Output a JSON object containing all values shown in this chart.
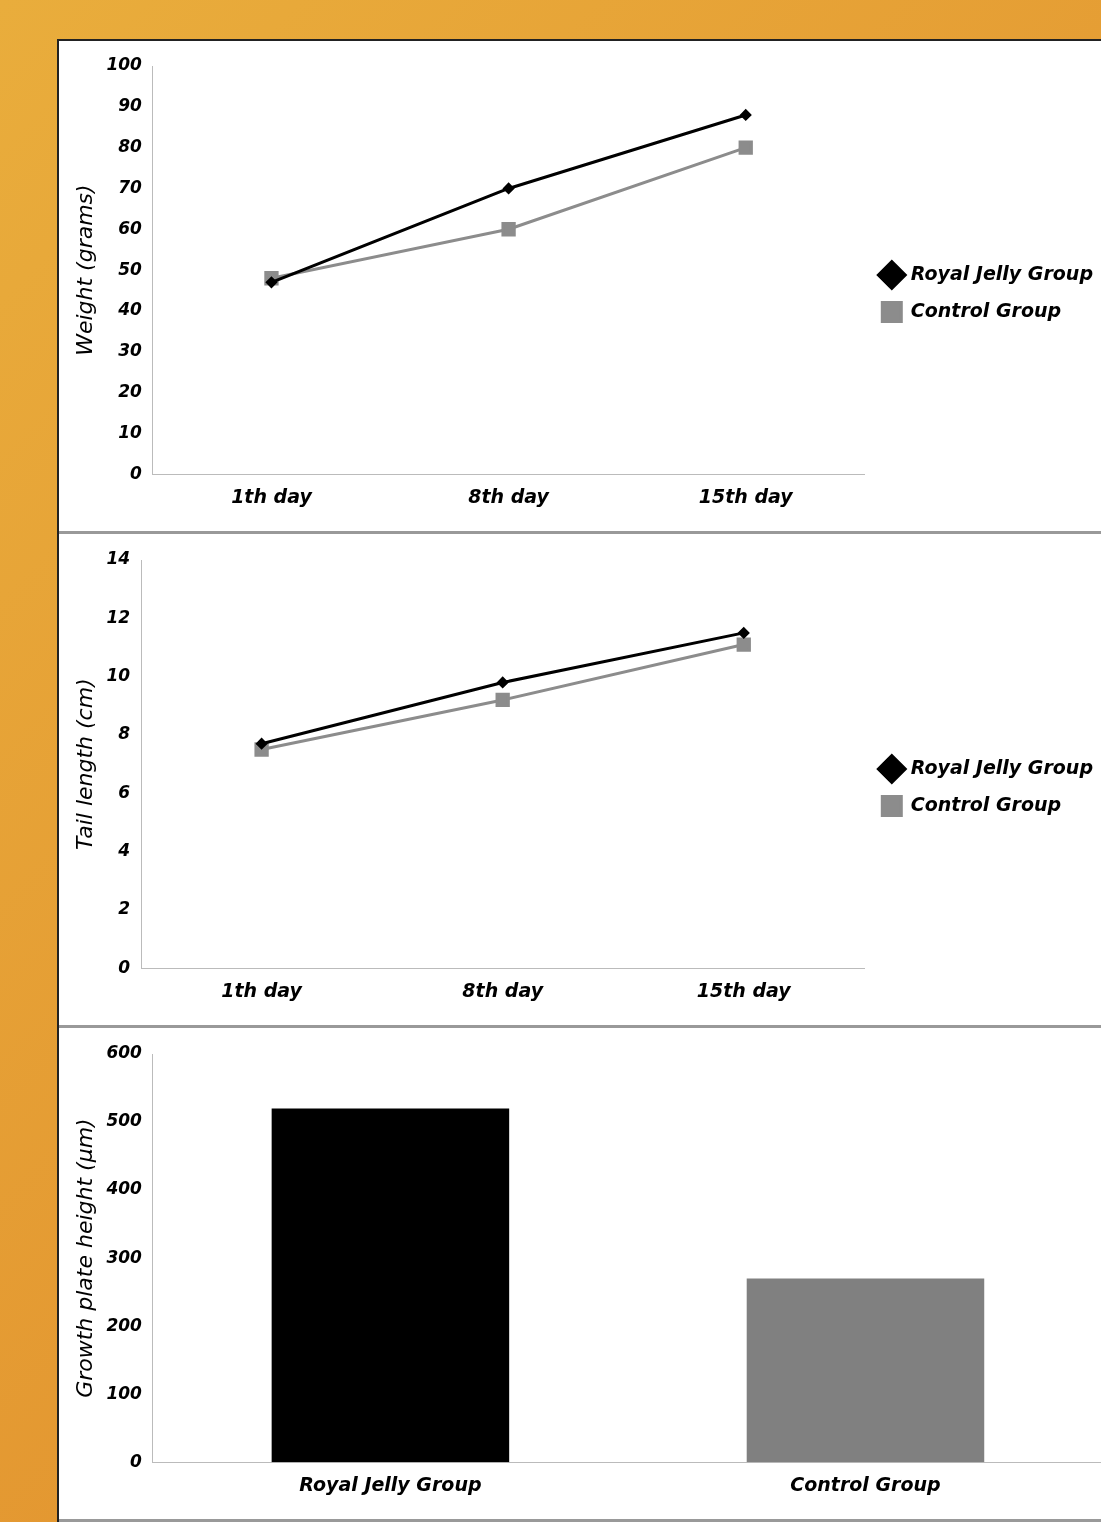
{
  "chart_data": [
    {
      "type": "line",
      "ylabel": "Weight (grams)",
      "categories": [
        "1th day",
        "8th day",
        "15th day"
      ],
      "ylim": [
        0,
        100
      ],
      "yticks": [
        0,
        10,
        20,
        30,
        40,
        50,
        60,
        70,
        80,
        90,
        100
      ],
      "grid": false,
      "legend": "right",
      "series": [
        {
          "name": "Royal Jelly Group",
          "color": "#000000",
          "marker": "diamond",
          "values": [
            47,
            70,
            88
          ]
        },
        {
          "name": "Control Group",
          "color": "#8c8c8c",
          "marker": "square",
          "values": [
            48,
            60,
            80
          ]
        }
      ]
    },
    {
      "type": "line",
      "ylabel": "Tail length (cm)",
      "categories": [
        "1th day",
        "8th day",
        "15th day"
      ],
      "ylim": [
        0,
        14
      ],
      "yticks": [
        0,
        2,
        4,
        6,
        8,
        10,
        12,
        14
      ],
      "grid": false,
      "legend": "right",
      "series": [
        {
          "name": "Royal Jelly Group",
          "color": "#000000",
          "marker": "diamond",
          "values": [
            7.7,
            9.8,
            11.5
          ]
        },
        {
          "name": "Control Group",
          "color": "#8c8c8c",
          "marker": "square",
          "values": [
            7.5,
            9.2,
            11.1
          ]
        }
      ]
    },
    {
      "type": "bar",
      "ylabel": "Growth plate height (µm)",
      "categories": [
        "Royal Jelly Group",
        "Control Group"
      ],
      "values": [
        520,
        270
      ],
      "colors": [
        "#000000",
        "#808080"
      ],
      "ylim": [
        0,
        600
      ],
      "yticks": [
        0,
        100,
        200,
        300,
        400,
        500,
        600
      ],
      "grid": false,
      "legend": false
    }
  ]
}
